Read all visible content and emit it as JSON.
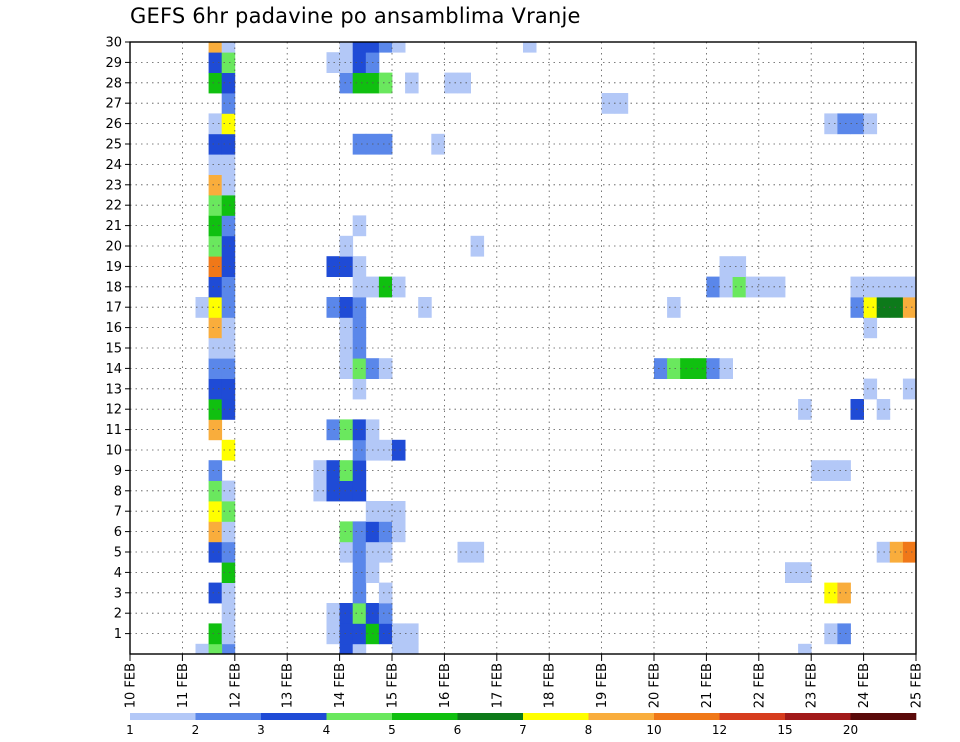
{
  "chart_data": {
    "type": "heatmap",
    "title": "GEFS 6hr padavine po ansamblima Vranje",
    "xlabel": "",
    "ylabel": "",
    "x_ticks": [
      "10 FEB",
      "11 FEB",
      "12 FEB",
      "13 FEB",
      "14 FEB",
      "15 FEB",
      "16 FEB",
      "17 FEB",
      "18 FEB",
      "19 FEB",
      "20 FEB",
      "21 FEB",
      "22 FEB",
      "23 FEB",
      "24 FEB",
      "25 FEB"
    ],
    "x_range_days": [
      10,
      25
    ],
    "step_hours": 6,
    "y_ticks": [
      1,
      2,
      3,
      4,
      5,
      6,
      7,
      8,
      9,
      10,
      11,
      12,
      13,
      14,
      15,
      16,
      17,
      18,
      19,
      20,
      21,
      22,
      23,
      24,
      25,
      26,
      27,
      28,
      29,
      30
    ],
    "y_range": [
      0,
      30
    ],
    "grid": true,
    "legend_position": "bottom",
    "colorbar": {
      "labels": [
        "1",
        "2",
        "3",
        "4",
        "5",
        "6",
        "7",
        "8",
        "10",
        "12",
        "15",
        "20"
      ],
      "colors": [
        "#b3c8f7",
        "#5a87ea",
        "#1f4bd6",
        "#6ae85e",
        "#10c010",
        "#0d7a1a",
        "#ffff00",
        "#f9ad3c",
        "#f07818",
        "#d63c1e",
        "#a11a1a",
        "#5a0a0a"
      ]
    },
    "cells": [
      {
        "x": "11.75",
        "m": 0,
        "c": 1
      },
      {
        "x": "11.25",
        "m": 0,
        "c": 0
      },
      {
        "x": "11.5",
        "m": 0,
        "c": 3
      },
      {
        "x": "14.0",
        "m": 0,
        "c": 2
      },
      {
        "x": "14.25",
        "m": 0,
        "c": 0
      },
      {
        "x": "15.0",
        "m": 0,
        "c": 0
      },
      {
        "x": "15.25",
        "m": 0,
        "c": 0
      },
      {
        "x": "22.75",
        "m": 0,
        "c": 0
      },
      {
        "x": "11.5",
        "m": 1,
        "c": 4
      },
      {
        "x": "11.75",
        "m": 1,
        "c": 0
      },
      {
        "x": "13.75",
        "m": 1,
        "c": 0
      },
      {
        "x": "14.0",
        "m": 1,
        "c": 2
      },
      {
        "x": "14.25",
        "m": 1,
        "c": 2
      },
      {
        "x": "14.5",
        "m": 1,
        "c": 4
      },
      {
        "x": "14.75",
        "m": 1,
        "c": 2
      },
      {
        "x": "15.0",
        "m": 1,
        "c": 0
      },
      {
        "x": "15.25",
        "m": 1,
        "c": 0
      },
      {
        "x": "23.25",
        "m": 1,
        "c": 0
      },
      {
        "x": "23.5",
        "m": 1,
        "c": 1
      },
      {
        "x": "11.75",
        "m": 2,
        "c": 0
      },
      {
        "x": "13.75",
        "m": 2,
        "c": 0
      },
      {
        "x": "14.0",
        "m": 2,
        "c": 2
      },
      {
        "x": "14.25",
        "m": 2,
        "c": 3
      },
      {
        "x": "14.5",
        "m": 2,
        "c": 2
      },
      {
        "x": "14.75",
        "m": 2,
        "c": 1
      },
      {
        "x": "11.5",
        "m": 3,
        "c": 2
      },
      {
        "x": "11.75",
        "m": 3,
        "c": 0
      },
      {
        "x": "14.25",
        "m": 3,
        "c": 1
      },
      {
        "x": "14.75",
        "m": 3,
        "c": 0
      },
      {
        "x": "23.25",
        "m": 3,
        "c": 6
      },
      {
        "x": "23.5",
        "m": 3,
        "c": 7
      },
      {
        "x": "11.75",
        "m": 4,
        "c": 4
      },
      {
        "x": "14.25",
        "m": 4,
        "c": 1
      },
      {
        "x": "14.5",
        "m": 4,
        "c": 0
      },
      {
        "x": "22.5",
        "m": 4,
        "c": 0
      },
      {
        "x": "22.75",
        "m": 4,
        "c": 0
      },
      {
        "x": "11.5",
        "m": 5,
        "c": 2
      },
      {
        "x": "11.75",
        "m": 5,
        "c": 1
      },
      {
        "x": "14.0",
        "m": 5,
        "c": 0
      },
      {
        "x": "14.25",
        "m": 5,
        "c": 1
      },
      {
        "x": "14.5",
        "m": 5,
        "c": 0
      },
      {
        "x": "14.75",
        "m": 5,
        "c": 0
      },
      {
        "x": "16.25",
        "m": 5,
        "c": 0
      },
      {
        "x": "16.5",
        "m": 5,
        "c": 0
      },
      {
        "x": "24.25",
        "m": 5,
        "c": 0
      },
      {
        "x": "24.5",
        "m": 5,
        "c": 7
      },
      {
        "x": "24.75",
        "m": 5,
        "c": 8
      },
      {
        "x": "11.5",
        "m": 6,
        "c": 7
      },
      {
        "x": "11.75",
        "m": 6,
        "c": 0
      },
      {
        "x": "14.0",
        "m": 6,
        "c": 3
      },
      {
        "x": "14.25",
        "m": 6,
        "c": 1
      },
      {
        "x": "14.5",
        "m": 6,
        "c": 2
      },
      {
        "x": "14.75",
        "m": 6,
        "c": 1
      },
      {
        "x": "15.0",
        "m": 6,
        "c": 0
      },
      {
        "x": "11.5",
        "m": 7,
        "c": 6
      },
      {
        "x": "11.75",
        "m": 7,
        "c": 3
      },
      {
        "x": "14.5",
        "m": 7,
        "c": 0
      },
      {
        "x": "14.75",
        "m": 7,
        "c": 0
      },
      {
        "x": "15.0",
        "m": 7,
        "c": 0
      },
      {
        "x": "11.5",
        "m": 8,
        "c": 3
      },
      {
        "x": "11.75",
        "m": 8,
        "c": 0
      },
      {
        "x": "13.5",
        "m": 8,
        "c": 0
      },
      {
        "x": "13.75",
        "m": 8,
        "c": 2
      },
      {
        "x": "14.0",
        "m": 8,
        "c": 2
      },
      {
        "x": "14.25",
        "m": 8,
        "c": 2
      },
      {
        "x": "11.5",
        "m": 9,
        "c": 1
      },
      {
        "x": "13.5",
        "m": 9,
        "c": 0
      },
      {
        "x": "13.75",
        "m": 9,
        "c": 2
      },
      {
        "x": "14.0",
        "m": 9,
        "c": 3
      },
      {
        "x": "14.25",
        "m": 9,
        "c": 2
      },
      {
        "x": "23.0",
        "m": 9,
        "c": 0
      },
      {
        "x": "23.25",
        "m": 9,
        "c": 0
      },
      {
        "x": "23.5",
        "m": 9,
        "c": 0
      },
      {
        "x": "11.75",
        "m": 10,
        "c": 6
      },
      {
        "x": "14.25",
        "m": 10,
        "c": 1
      },
      {
        "x": "14.5",
        "m": 10,
        "c": 0
      },
      {
        "x": "14.75",
        "m": 10,
        "c": 0
      },
      {
        "x": "15.0",
        "m": 10,
        "c": 2
      },
      {
        "x": "11.5",
        "m": 11,
        "c": 7
      },
      {
        "x": "13.75",
        "m": 11,
        "c": 1
      },
      {
        "x": "14.0",
        "m": 11,
        "c": 3
      },
      {
        "x": "14.25",
        "m": 11,
        "c": 2
      },
      {
        "x": "14.5",
        "m": 11,
        "c": 0
      },
      {
        "x": "11.5",
        "m": 12,
        "c": 4
      },
      {
        "x": "11.75",
        "m": 12,
        "c": 2
      },
      {
        "x": "22.75",
        "m": 12,
        "c": 0
      },
      {
        "x": "23.75",
        "m": 12,
        "c": 2
      },
      {
        "x": "24.25",
        "m": 12,
        "c": 0
      },
      {
        "x": "11.5",
        "m": 13,
        "c": 2
      },
      {
        "x": "11.75",
        "m": 13,
        "c": 2
      },
      {
        "x": "14.25",
        "m": 13,
        "c": 0
      },
      {
        "x": "24.0",
        "m": 13,
        "c": 0
      },
      {
        "x": "24.75",
        "m": 13,
        "c": 0
      },
      {
        "x": "11.5",
        "m": 14,
        "c": 1
      },
      {
        "x": "11.75",
        "m": 14,
        "c": 1
      },
      {
        "x": "14.0",
        "m": 14,
        "c": 0
      },
      {
        "x": "14.25",
        "m": 14,
        "c": 3
      },
      {
        "x": "14.5",
        "m": 14,
        "c": 1
      },
      {
        "x": "14.75",
        "m": 14,
        "c": 0
      },
      {
        "x": "20.0",
        "m": 14,
        "c": 1
      },
      {
        "x": "20.25",
        "m": 14,
        "c": 3
      },
      {
        "x": "20.5",
        "m": 14,
        "c": 4
      },
      {
        "x": "20.75",
        "m": 14,
        "c": 4
      },
      {
        "x": "21.0",
        "m": 14,
        "c": 1
      },
      {
        "x": "21.25",
        "m": 14,
        "c": 0
      },
      {
        "x": "11.5",
        "m": 15,
        "c": 0
      },
      {
        "x": "11.75",
        "m": 15,
        "c": 0
      },
      {
        "x": "14.0",
        "m": 15,
        "c": 0
      },
      {
        "x": "14.25",
        "m": 15,
        "c": 1
      },
      {
        "x": "11.5",
        "m": 16,
        "c": 7
      },
      {
        "x": "11.75",
        "m": 16,
        "c": 0
      },
      {
        "x": "14.0",
        "m": 16,
        "c": 0
      },
      {
        "x": "14.25",
        "m": 16,
        "c": 1
      },
      {
        "x": "24.0",
        "m": 16,
        "c": 0
      },
      {
        "x": "11.25",
        "m": 17,
        "c": 0
      },
      {
        "x": "11.5",
        "m": 17,
        "c": 6
      },
      {
        "x": "11.75",
        "m": 17,
        "c": 1
      },
      {
        "x": "13.75",
        "m": 17,
        "c": 1
      },
      {
        "x": "14.0",
        "m": 17,
        "c": 2
      },
      {
        "x": "14.25",
        "m": 17,
        "c": 1
      },
      {
        "x": "15.5",
        "m": 17,
        "c": 0
      },
      {
        "x": "20.25",
        "m": 17,
        "c": 0
      },
      {
        "x": "23.75",
        "m": 17,
        "c": 1
      },
      {
        "x": "24.0",
        "m": 17,
        "c": 6
      },
      {
        "x": "24.25",
        "m": 17,
        "c": 5
      },
      {
        "x": "24.5",
        "m": 17,
        "c": 5
      },
      {
        "x": "24.75",
        "m": 17,
        "c": 7
      },
      {
        "x": "11.5",
        "m": 18,
        "c": 2
      },
      {
        "x": "11.75",
        "m": 18,
        "c": 1
      },
      {
        "x": "14.25",
        "m": 18,
        "c": 0
      },
      {
        "x": "14.5",
        "m": 18,
        "c": 0
      },
      {
        "x": "14.75",
        "m": 18,
        "c": 4
      },
      {
        "x": "15.0",
        "m": 18,
        "c": 0
      },
      {
        "x": "21.0",
        "m": 18,
        "c": 1
      },
      {
        "x": "21.25",
        "m": 18,
        "c": 0
      },
      {
        "x": "21.5",
        "m": 18,
        "c": 3
      },
      {
        "x": "21.75",
        "m": 18,
        "c": 0
      },
      {
        "x": "22.0",
        "m": 18,
        "c": 0
      },
      {
        "x": "22.25",
        "m": 18,
        "c": 0
      },
      {
        "x": "23.75",
        "m": 18,
        "c": 0
      },
      {
        "x": "24.0",
        "m": 18,
        "c": 0
      },
      {
        "x": "24.25",
        "m": 18,
        "c": 0
      },
      {
        "x": "24.5",
        "m": 18,
        "c": 0
      },
      {
        "x": "24.75",
        "m": 18,
        "c": 0
      },
      {
        "x": "11.5",
        "m": 19,
        "c": 8
      },
      {
        "x": "11.75",
        "m": 19,
        "c": 2
      },
      {
        "x": "13.75",
        "m": 19,
        "c": 2
      },
      {
        "x": "14.0",
        "m": 19,
        "c": 2
      },
      {
        "x": "14.25",
        "m": 19,
        "c": 0
      },
      {
        "x": "21.25",
        "m": 19,
        "c": 0
      },
      {
        "x": "21.5",
        "m": 19,
        "c": 0
      },
      {
        "x": "11.5",
        "m": 20,
        "c": 3
      },
      {
        "x": "11.75",
        "m": 20,
        "c": 2
      },
      {
        "x": "14.0",
        "m": 20,
        "c": 0
      },
      {
        "x": "16.5",
        "m": 20,
        "c": 0
      },
      {
        "x": "11.5",
        "m": 21,
        "c": 4
      },
      {
        "x": "11.75",
        "m": 21,
        "c": 1
      },
      {
        "x": "14.25",
        "m": 21,
        "c": 0
      },
      {
        "x": "11.5",
        "m": 22,
        "c": 3
      },
      {
        "x": "11.75",
        "m": 22,
        "c": 4
      },
      {
        "x": "11.5",
        "m": 23,
        "c": 7
      },
      {
        "x": "11.75",
        "m": 23,
        "c": 0
      },
      {
        "x": "11.5",
        "m": 24,
        "c": 0
      },
      {
        "x": "11.75",
        "m": 24,
        "c": 0
      },
      {
        "x": "11.5",
        "m": 25,
        "c": 2
      },
      {
        "x": "11.75",
        "m": 25,
        "c": 2
      },
      {
        "x": "14.25",
        "m": 25,
        "c": 1
      },
      {
        "x": "14.5",
        "m": 25,
        "c": 1
      },
      {
        "x": "14.75",
        "m": 25,
        "c": 1
      },
      {
        "x": "15.75",
        "m": 25,
        "c": 0
      },
      {
        "x": "11.5",
        "m": 26,
        "c": 0
      },
      {
        "x": "11.75",
        "m": 26,
        "c": 6
      },
      {
        "x": "23.25",
        "m": 26,
        "c": 0
      },
      {
        "x": "23.5",
        "m": 26,
        "c": 1
      },
      {
        "x": "23.75",
        "m": 26,
        "c": 1
      },
      {
        "x": "24.0",
        "m": 26,
        "c": 0
      },
      {
        "x": "11.75",
        "m": 27,
        "c": 1
      },
      {
        "x": "19.0",
        "m": 27,
        "c": 0
      },
      {
        "x": "19.25",
        "m": 27,
        "c": 0
      },
      {
        "x": "11.5",
        "m": 28,
        "c": 4
      },
      {
        "x": "11.75",
        "m": 28,
        "c": 2
      },
      {
        "x": "14.0",
        "m": 28,
        "c": 1
      },
      {
        "x": "14.25",
        "m": 28,
        "c": 4
      },
      {
        "x": "14.5",
        "m": 28,
        "c": 4
      },
      {
        "x": "14.75",
        "m": 28,
        "c": 3
      },
      {
        "x": "15.25",
        "m": 28,
        "c": 0
      },
      {
        "x": "16.0",
        "m": 28,
        "c": 0
      },
      {
        "x": "16.25",
        "m": 28,
        "c": 0
      },
      {
        "x": "11.5",
        "m": 29,
        "c": 2
      },
      {
        "x": "11.75",
        "m": 29,
        "c": 3
      },
      {
        "x": "13.75",
        "m": 29,
        "c": 0
      },
      {
        "x": "14.0",
        "m": 29,
        "c": 0
      },
      {
        "x": "14.25",
        "m": 29,
        "c": 2
      },
      {
        "x": "14.5",
        "m": 29,
        "c": 1
      },
      {
        "x": "11.5",
        "m": 30,
        "c": 7
      },
      {
        "x": "11.75",
        "m": 30,
        "c": 0
      },
      {
        "x": "14.0",
        "m": 30,
        "c": 0
      },
      {
        "x": "14.25",
        "m": 30,
        "c": 2
      },
      {
        "x": "14.5",
        "m": 30,
        "c": 2
      },
      {
        "x": "14.75",
        "m": 30,
        "c": 1
      },
      {
        "x": "15.0",
        "m": 30,
        "c": 0
      },
      {
        "x": "17.5",
        "m": 30,
        "c": 0
      }
    ]
  }
}
